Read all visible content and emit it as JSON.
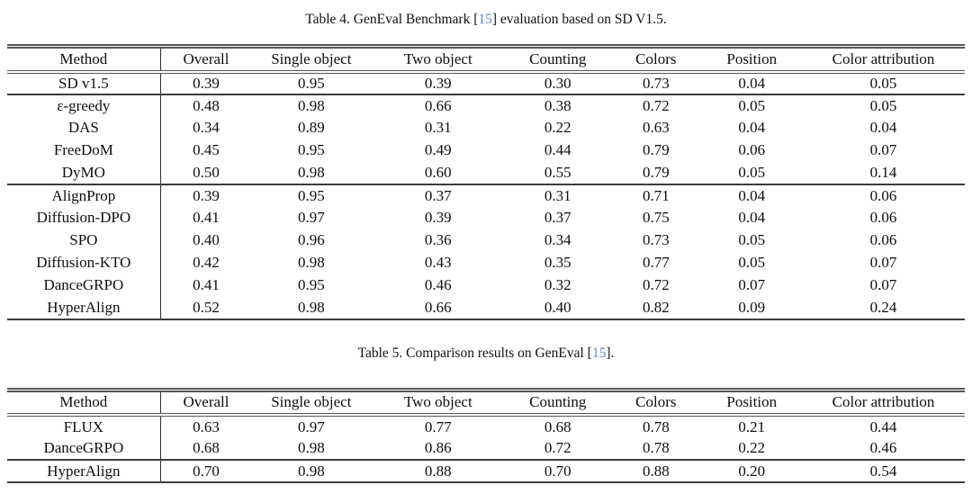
{
  "page": {
    "background_color": "#ffffff",
    "text_color": "#0f0f0f",
    "citation_color": "#5b8ed2",
    "rule_color": "#3d3d3d"
  },
  "tables": [
    {
      "caption": {
        "prefix": "Table 4. GenEval Benchmark [",
        "cite": "15",
        "suffix": "] evaluation based on SD V1.5."
      },
      "columns": [
        "Method",
        "Overall",
        "Single object",
        "Two object",
        "Counting",
        "Colors",
        "Position",
        "Color attribution"
      ],
      "groups": [
        {
          "rows": [
            {
              "method": "SD v1.5",
              "values": [
                "0.39",
                "0.95",
                "0.39",
                "0.30",
                "0.73",
                "0.04",
                "0.05"
              ]
            }
          ]
        },
        {
          "rows": [
            {
              "method": "ε-greedy",
              "values": [
                "0.48",
                "0.98",
                "0.66",
                "0.38",
                "0.72",
                "0.05",
                "0.05"
              ]
            },
            {
              "method": "DAS",
              "values": [
                "0.34",
                "0.89",
                "0.31",
                "0.22",
                "0.63",
                "0.04",
                "0.04"
              ]
            },
            {
              "method": "FreeDoM",
              "values": [
                "0.45",
                "0.95",
                "0.49",
                "0.44",
                "0.79",
                "0.06",
                "0.07"
              ]
            },
            {
              "method": "DyMO",
              "values": [
                "0.50",
                "0.98",
                "0.60",
                "0.55",
                "0.79",
                "0.05",
                "0.14"
              ]
            }
          ]
        },
        {
          "rows": [
            {
              "method": "AlignProp",
              "values": [
                "0.39",
                "0.95",
                "0.37",
                "0.31",
                "0.71",
                "0.04",
                "0.06"
              ]
            },
            {
              "method": "Diffusion-DPO",
              "values": [
                "0.41",
                "0.97",
                "0.39",
                "0.37",
                "0.75",
                "0.04",
                "0.06"
              ]
            },
            {
              "method": "SPO",
              "values": [
                "0.40",
                "0.96",
                "0.36",
                "0.34",
                "0.73",
                "0.05",
                "0.06"
              ]
            },
            {
              "method": "Diffusion-KTO",
              "values": [
                "0.42",
                "0.98",
                "0.43",
                "0.35",
                "0.77",
                "0.05",
                "0.07"
              ]
            },
            {
              "method": "DanceGRPO",
              "values": [
                "0.41",
                "0.95",
                "0.46",
                "0.32",
                "0.72",
                "0.07",
                "0.07"
              ]
            },
            {
              "method": "HyperAlign",
              "values": [
                "0.52",
                "0.98",
                "0.66",
                "0.40",
                "0.82",
                "0.09",
                "0.24"
              ]
            }
          ]
        }
      ]
    },
    {
      "caption": {
        "prefix": "Table 5. Comparison results on GenEval [",
        "cite": "15",
        "suffix": "]."
      },
      "columns": [
        "Method",
        "Overall",
        "Single object",
        "Two object",
        "Counting",
        "Colors",
        "Position",
        "Color attribution"
      ],
      "groups": [
        {
          "rows": [
            {
              "method": "FLUX",
              "values": [
                "0.63",
                "0.97",
                "0.77",
                "0.68",
                "0.78",
                "0.21",
                "0.44"
              ]
            },
            {
              "method": "DanceGRPO",
              "values": [
                "0.68",
                "0.98",
                "0.86",
                "0.72",
                "0.78",
                "0.22",
                "0.46"
              ]
            }
          ]
        },
        {
          "rows": [
            {
              "method": "HyperAlign",
              "values": [
                "0.70",
                "0.98",
                "0.88",
                "0.70",
                "0.88",
                "0.20",
                "0.54"
              ]
            }
          ]
        }
      ]
    }
  ]
}
